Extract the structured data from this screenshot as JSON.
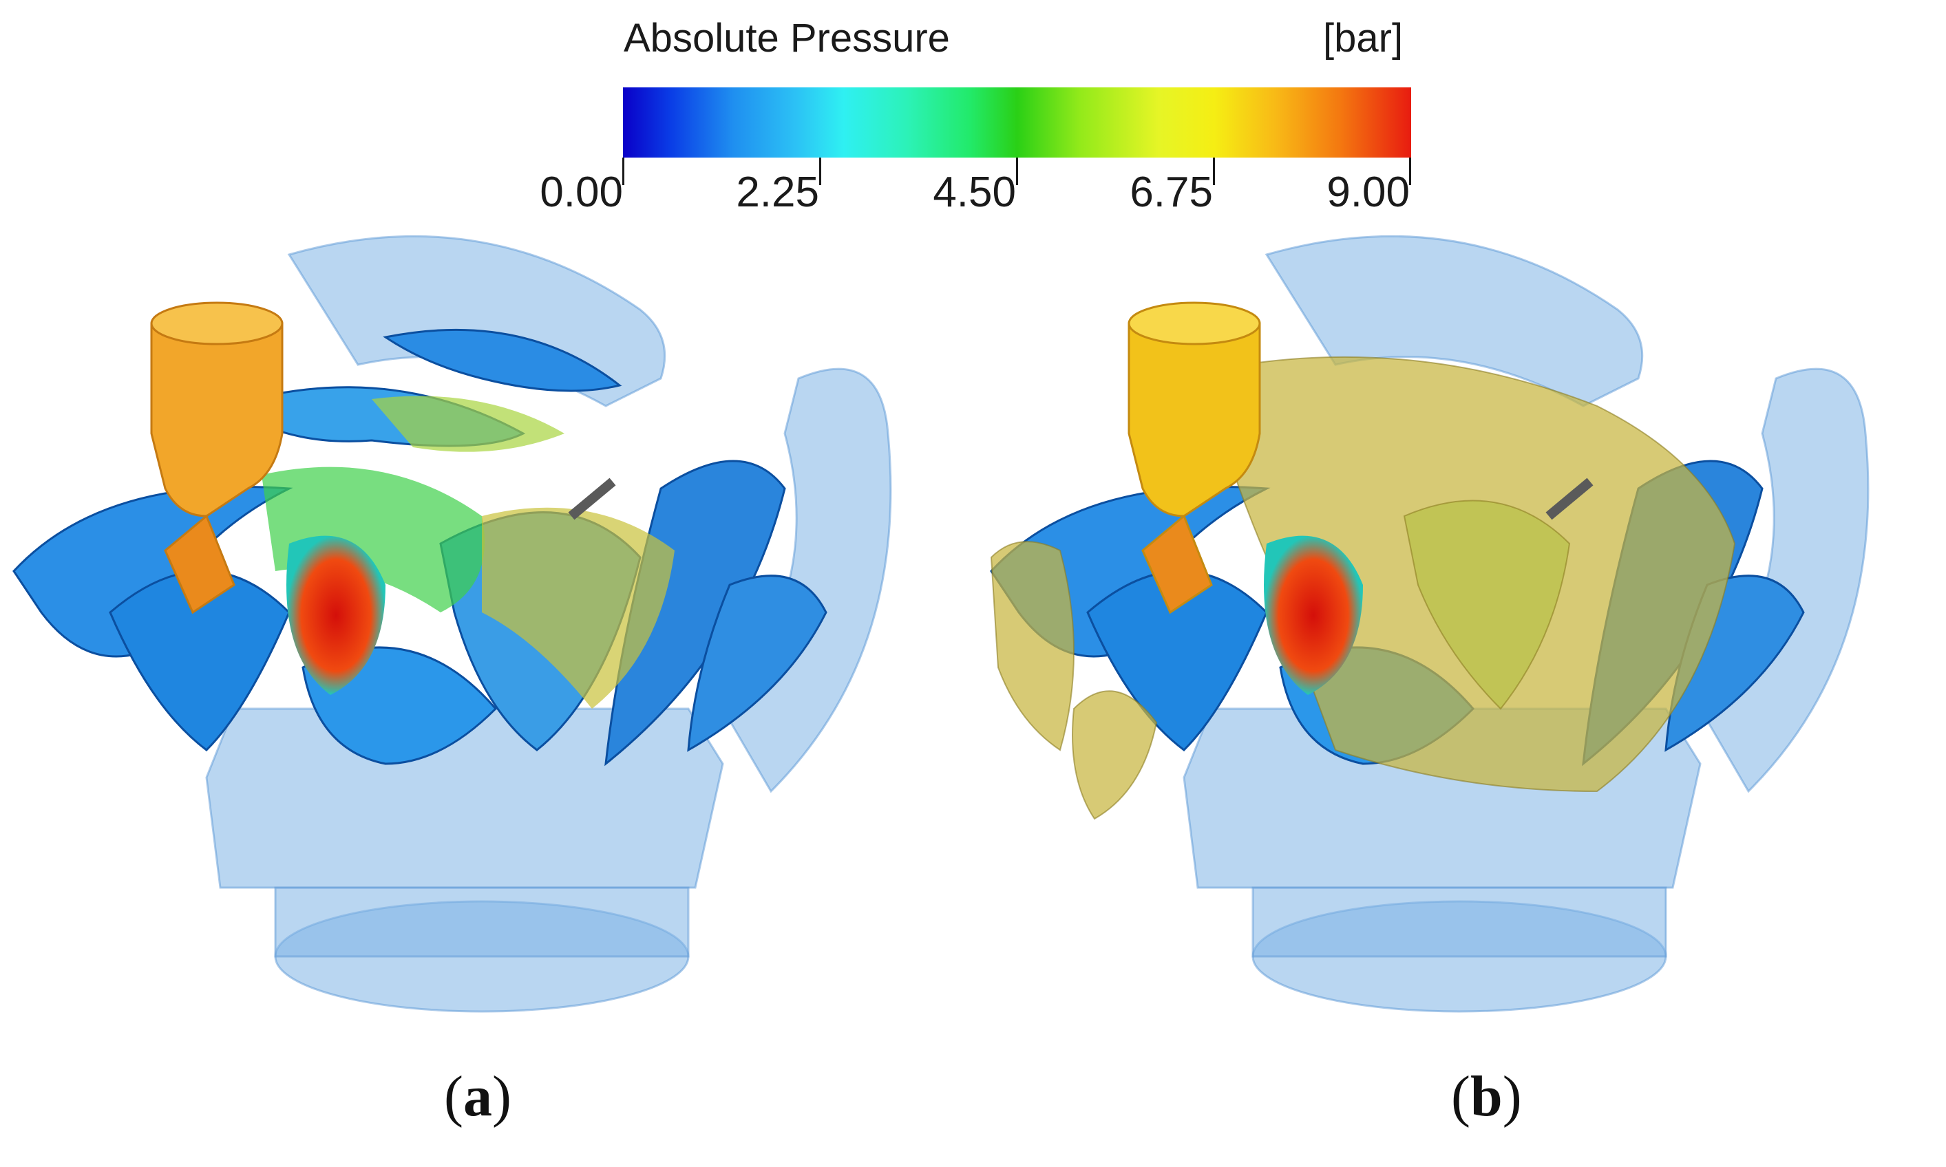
{
  "legend": {
    "title": "Absolute Pressure",
    "unit": "[bar]",
    "ticks": [
      "0.00",
      "2.25",
      "4.50",
      "6.75",
      "9.00"
    ],
    "colors": [
      "#0a00c8",
      "#2cc2f5",
      "#2ad016",
      "#f5ee14",
      "#e81c10"
    ]
  },
  "captions": {
    "a_open": "(",
    "a_letter": "a",
    "a_close": ")",
    "b_open": "(",
    "b_letter": "b",
    "b_close": ")"
  }
}
